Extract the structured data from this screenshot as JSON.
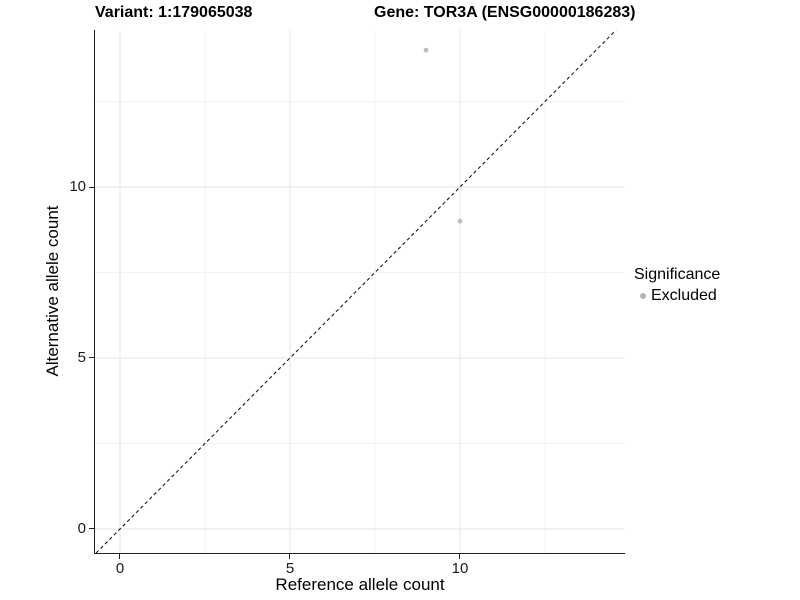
{
  "chart_data": {
    "type": "scatter",
    "titles": {
      "left": "Variant: 1:179065038",
      "right": "Gene: TOR3A (ENSG00000186283)"
    },
    "xlabel": "Reference allele count",
    "ylabel": "Alternative allele count",
    "xlim": [
      -0.735,
      14.853
    ],
    "ylim": [
      -0.702,
      14.591
    ],
    "x_major_ticks": [
      0,
      5,
      10
    ],
    "y_major_ticks": [
      0,
      5,
      10
    ],
    "x_minor_ticks": [
      2.5,
      7.5,
      12.5
    ],
    "y_minor_ticks": [
      2.5,
      7.5,
      12.5
    ],
    "grid": true,
    "series": [
      {
        "name": "Excluded",
        "color": "#bcbcbc",
        "points": [
          {
            "x": 9,
            "y": 14
          },
          {
            "x": 10,
            "y": 9
          }
        ]
      }
    ],
    "reference_line": {
      "type": "identity",
      "style": "dashed",
      "color": "#1a1a1a"
    },
    "legend": {
      "title": "Significance",
      "position": "right",
      "items": [
        {
          "label": "Excluded",
          "color": "#b5b5b5",
          "marker": "circle"
        }
      ]
    },
    "colors": {
      "grid_major": "#e6e6e6",
      "grid_minor": "#f2f2f2",
      "axis_line": "#1f1f1f",
      "tick_text": "#1a1a1a"
    }
  }
}
